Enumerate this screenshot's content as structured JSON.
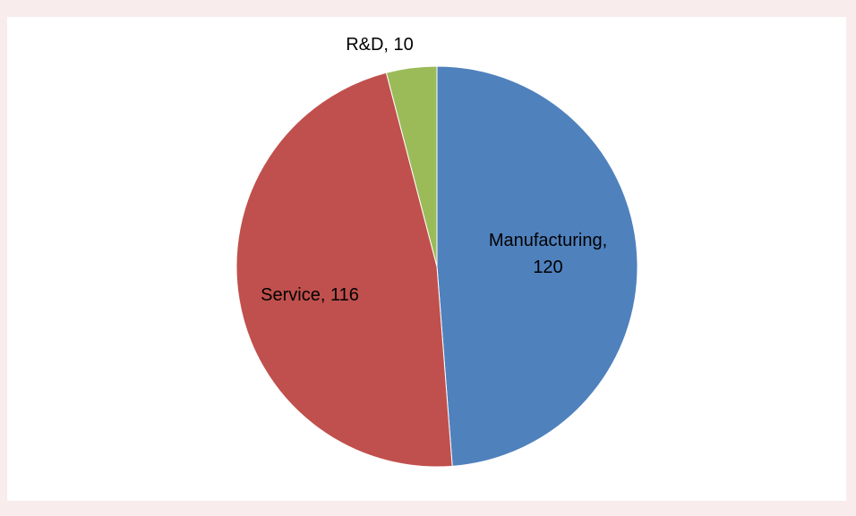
{
  "chart_data": {
    "type": "pie",
    "slices": [
      {
        "category": "Manufacturing",
        "value": 120,
        "color": "#4f81bd",
        "label_lines": [
          "Manufacturing,",
          "120"
        ]
      },
      {
        "category": "Service",
        "value": 116,
        "color": "#c0504d",
        "label_lines": [
          "Service, 116"
        ]
      },
      {
        "category": "R&D",
        "value": 10,
        "color": "#9bbb59",
        "label_lines": [
          "R&D, 10"
        ]
      }
    ],
    "start_angle": "12 o'clock",
    "direction": "clockwise",
    "legend": "none",
    "data_labels": "category and value"
  },
  "colors": {
    "page_background": "#f9ecec",
    "plot_background": "#ffffff"
  }
}
